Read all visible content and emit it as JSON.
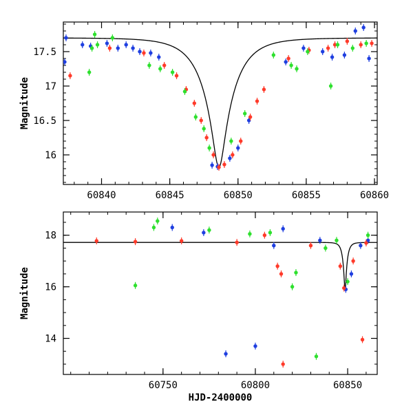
{
  "chart_data": [
    {
      "type": "scatter",
      "panel": "top",
      "title": "",
      "xlabel": "",
      "ylabel": "Magnitude",
      "xlim": [
        60837.2,
        60860.2
      ],
      "ylim": [
        17.93,
        15.57
      ],
      "x_ticks": [
        60840,
        60845,
        60850,
        60855,
        60860
      ],
      "x_tick_labels": [
        "60840",
        "60845",
        "60850",
        "60855",
        "60860"
      ],
      "y_ticks": [
        16,
        16.5,
        17,
        17.5
      ],
      "y_tick_labels": [
        "16",
        "16.5",
        "17",
        "17.5"
      ],
      "grid": false,
      "model_curve": {
        "color": "#000000",
        "baseline": 17.7,
        "peak_mag": 15.82,
        "t0": 60848.6,
        "tE": 2.2
      },
      "series": [
        {
          "color": "#1f3fe0",
          "points": [
            [
              60837.3,
              17.35
            ],
            [
              60837.4,
              17.7
            ],
            [
              60838.6,
              17.6
            ],
            [
              60839.2,
              17.58
            ],
            [
              60840.4,
              17.62
            ],
            [
              60841.2,
              17.55
            ],
            [
              60841.8,
              17.6
            ],
            [
              60842.3,
              17.55
            ],
            [
              60842.8,
              17.5
            ],
            [
              60843.6,
              17.48
            ],
            [
              60844.2,
              17.42
            ],
            [
              60848.1,
              15.85
            ],
            [
              60848.5,
              15.83
            ],
            [
              60849.4,
              15.95
            ],
            [
              60850.0,
              16.1
            ],
            [
              60850.8,
              16.5
            ],
            [
              60853.5,
              17.35
            ],
            [
              60854.8,
              17.55
            ],
            [
              60856.2,
              17.5
            ],
            [
              60856.9,
              17.42
            ],
            [
              60857.8,
              17.45
            ],
            [
              60858.6,
              17.8
            ],
            [
              60859.2,
              17.85
            ],
            [
              60859.6,
              17.4
            ]
          ]
        },
        {
          "color": "#ff3a2a",
          "points": [
            [
              60837.7,
              17.15
            ],
            [
              60840.6,
              17.55
            ],
            [
              60843.1,
              17.48
            ],
            [
              60844.6,
              17.3
            ],
            [
              60845.5,
              17.15
            ],
            [
              60846.2,
              16.95
            ],
            [
              60846.8,
              16.75
            ],
            [
              60847.3,
              16.5
            ],
            [
              60847.7,
              16.25
            ],
            [
              60848.2,
              16.0
            ],
            [
              60848.6,
              15.82
            ],
            [
              60849.0,
              15.86
            ],
            [
              60849.6,
              16.0
            ],
            [
              60850.2,
              16.2
            ],
            [
              60850.9,
              16.55
            ],
            [
              60851.4,
              16.78
            ],
            [
              60851.9,
              16.95
            ],
            [
              60853.7,
              17.4
            ],
            [
              60855.2,
              17.52
            ],
            [
              60856.6,
              17.55
            ],
            [
              60857.1,
              17.6
            ],
            [
              60858.0,
              17.65
            ],
            [
              60859.0,
              17.6
            ],
            [
              60859.8,
              17.62
            ]
          ]
        },
        {
          "color": "#2ee02e",
          "points": [
            [
              60839.1,
              17.2
            ],
            [
              60839.3,
              17.55
            ],
            [
              60839.5,
              17.75
            ],
            [
              60839.7,
              17.6
            ],
            [
              60840.8,
              17.7
            ],
            [
              60843.5,
              17.3
            ],
            [
              60844.3,
              17.25
            ],
            [
              60845.2,
              17.2
            ],
            [
              60846.1,
              16.92
            ],
            [
              60846.9,
              16.55
            ],
            [
              60847.5,
              16.38
            ],
            [
              60847.9,
              16.1
            ],
            [
              60849.5,
              16.2
            ],
            [
              60850.5,
              16.6
            ],
            [
              60852.6,
              17.45
            ],
            [
              60853.9,
              17.3
            ],
            [
              60854.3,
              17.25
            ],
            [
              60855.1,
              17.5
            ],
            [
              60856.8,
              17.0
            ],
            [
              60857.3,
              17.6
            ],
            [
              60858.4,
              17.55
            ],
            [
              60859.4,
              17.62
            ]
          ]
        }
      ]
    },
    {
      "type": "scatter",
      "panel": "bottom",
      "title": "",
      "xlabel": "HJD-2400000",
      "ylabel": "Magnitude",
      "xlim": [
        60696,
        60866
      ],
      "ylim": [
        18.9,
        12.6
      ],
      "x_ticks": [
        60750,
        60800,
        60850
      ],
      "x_tick_labels": [
        "60750",
        "60800",
        "60850"
      ],
      "y_ticks": [
        14,
        16,
        18
      ],
      "y_tick_labels": [
        "14",
        "16",
        "18"
      ],
      "grid": false,
      "model_curve": {
        "color": "#000000",
        "baseline": 17.72,
        "peak_mag": 15.82,
        "t0": 60848.6,
        "tE": 2.2
      },
      "series": [
        {
          "color": "#1f3fe0",
          "points": [
            [
              60755,
              18.3
            ],
            [
              60772,
              18.1
            ],
            [
              60784,
              13.4
            ],
            [
              60800,
              13.7
            ],
            [
              60810,
              17.6
            ],
            [
              60815,
              18.25
            ],
            [
              60835,
              17.8
            ],
            [
              60849,
              15.9
            ],
            [
              60852,
              16.5
            ],
            [
              60857,
              17.6
            ],
            [
              60861,
              17.8
            ]
          ]
        },
        {
          "color": "#ff3a2a",
          "points": [
            [
              60714,
              17.78
            ],
            [
              60735,
              17.75
            ],
            [
              60760,
              17.78
            ],
            [
              60790,
              17.72
            ],
            [
              60805,
              18.0
            ],
            [
              60812,
              16.8
            ],
            [
              60814,
              16.5
            ],
            [
              60815,
              13.0
            ],
            [
              60830,
              17.6
            ],
            [
              60846,
              16.8
            ],
            [
              60848,
              15.95
            ],
            [
              60853,
              17.0
            ],
            [
              60858,
              13.95
            ],
            [
              60860,
              17.7
            ]
          ]
        },
        {
          "color": "#2ee02e",
          "points": [
            [
              60735,
              16.05
            ],
            [
              60745,
              18.3
            ],
            [
              60747,
              18.55
            ],
            [
              60775,
              18.2
            ],
            [
              60797,
              18.05
            ],
            [
              60808,
              18.1
            ],
            [
              60820,
              16.0
            ],
            [
              60822,
              16.55
            ],
            [
              60833,
              13.3
            ],
            [
              60838,
              17.5
            ],
            [
              60844,
              17.8
            ],
            [
              60850,
              16.2
            ],
            [
              60861,
              18.0
            ]
          ]
        }
      ]
    }
  ]
}
